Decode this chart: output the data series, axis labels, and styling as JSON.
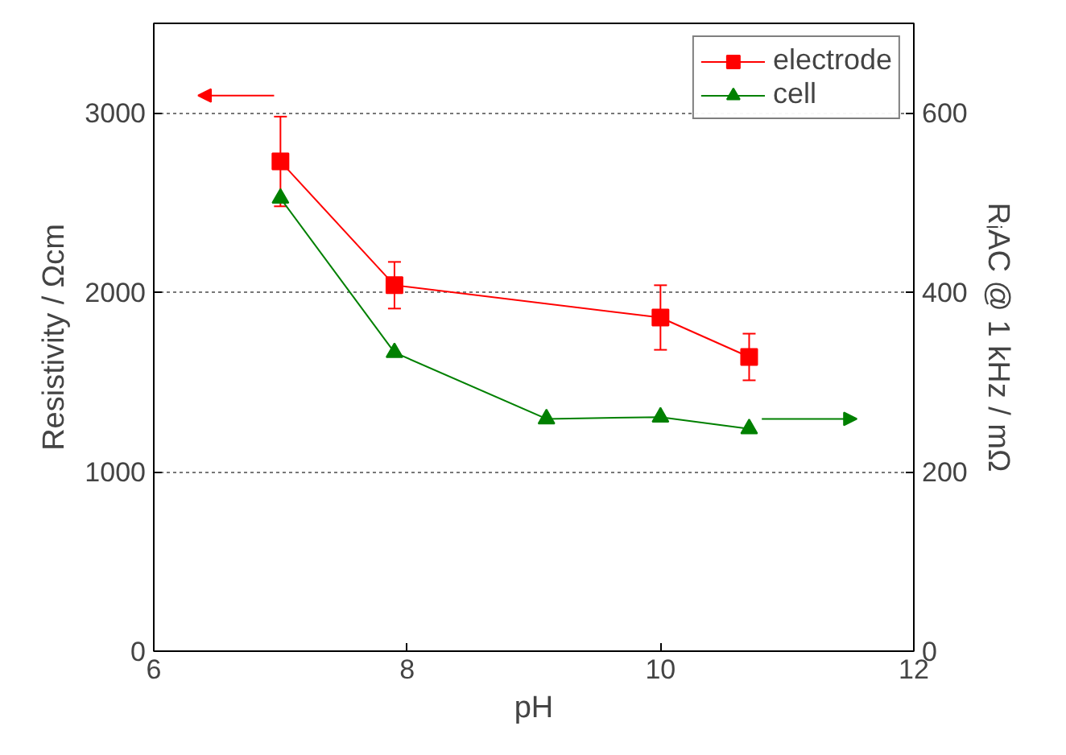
{
  "chart_data": {
    "type": "line",
    "xlabel": "pH",
    "ylabel": "Resistivity / Ωcm",
    "y2label": "RᵢAC @ 1 kHz / mΩ",
    "xlim": [
      6,
      12
    ],
    "xticks": [
      6,
      8,
      10,
      12
    ],
    "ylim": [
      0,
      3500
    ],
    "yticks": [
      0,
      1000,
      2000,
      3000
    ],
    "y2lim": [
      0,
      700
    ],
    "y2ticks": [
      0,
      200,
      400,
      600
    ],
    "grid": "y",
    "legend": "top right",
    "series": [
      {
        "name": "electrode",
        "color": "#ff0000",
        "marker": "square",
        "x": [
          7.0,
          7.9,
          10.0,
          10.7
        ],
        "values": [
          2730,
          2040,
          1860,
          1640
        ],
        "errors": [
          250,
          130,
          180,
          130
        ]
      },
      {
        "name": "cell",
        "color": "#008000",
        "marker": "triangle",
        "axis": "y2",
        "x": [
          7.0,
          7.9,
          9.1,
          10.0,
          10.7
        ],
        "values": [
          505,
          333,
          259,
          261,
          248
        ]
      }
    ]
  }
}
